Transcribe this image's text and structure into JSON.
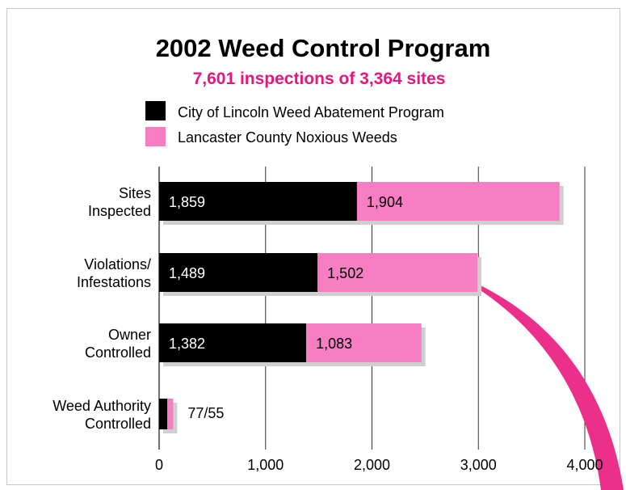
{
  "chart_data": {
    "type": "bar",
    "stacked": true,
    "orientation": "horizontal",
    "title": "2002 Weed Control Program",
    "subtitle": "7,601 inspections of 3,364 sites",
    "categories": [
      [
        "Sites",
        "Inspected"
      ],
      [
        "Violations/",
        "Infestations"
      ],
      [
        "Owner",
        "Controlled"
      ],
      [
        "Weed Authority",
        "Controlled"
      ]
    ],
    "series": [
      {
        "name": "City of Lincoln Weed Abatement Program",
        "values": [
          1859,
          1489,
          1382,
          77
        ],
        "labels": [
          "1,859",
          "1,489",
          "1,382",
          ""
        ]
      },
      {
        "name": "Lancaster County Noxious Weeds",
        "values": [
          1904,
          1502,
          1083,
          55
        ],
        "labels": [
          "1,904",
          "1,502",
          "1,083",
          ""
        ]
      }
    ],
    "extra_labels": [
      "",
      "",
      "",
      "77/55"
    ],
    "xlim": [
      0,
      4000
    ],
    "xticks": [
      0,
      1000,
      2000,
      3000,
      4000
    ],
    "xtick_labels": [
      "0",
      "1,000",
      "2,000",
      "3,000",
      "4,000"
    ],
    "grid": true,
    "legend_position": "top",
    "colors": {
      "series1": "#000000",
      "series2": "#f77ec3",
      "subtitle": "#e8157f",
      "shadow": "#cfcfcf",
      "grid": "#333333",
      "arrow": "#ec2f8a"
    }
  }
}
